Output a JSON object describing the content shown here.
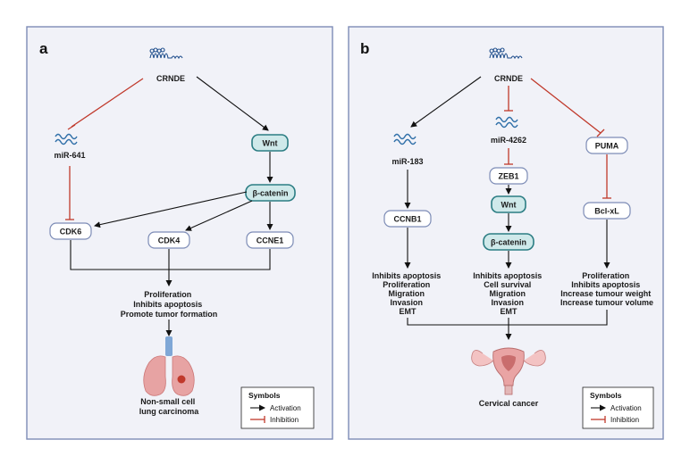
{
  "panel_a": {
    "letter": "a",
    "crnde": "CRNDE",
    "mir641": "miR-641",
    "wnt": "Wnt",
    "beta_catenin": "β-catenin",
    "cdk6": "CDK6",
    "cdk4": "CDK4",
    "ccne1": "CCNE1",
    "outcome": [
      "Proliferation",
      "Inhibits apoptosis",
      "Promote tumor formation"
    ],
    "disease": [
      "Non-small cell",
      "lung carcinoma"
    ],
    "legend": {
      "title": "Symbols",
      "activation": "Activation",
      "inhibition": "Inhibition"
    }
  },
  "panel_b": {
    "letter": "b",
    "crnde": "CRNDE",
    "mir183": "miR-183",
    "mir4262": "miR-4262",
    "puma": "PUMA",
    "zeb1": "ZEB1",
    "ccnb1": "CCNB1",
    "wnt": "Wnt",
    "bclxl": "Bcl-xL",
    "beta_catenin": "β-catenin",
    "outcome_left": [
      "Inhibits apoptosis",
      "Proliferation",
      "Migration",
      "Invasion",
      "EMT"
    ],
    "outcome_mid": [
      "Inhibits apoptosis",
      "Cell survival",
      "Migration",
      "Invasion",
      "EMT"
    ],
    "outcome_right": [
      "Proliferation",
      "Inhibits apoptosis",
      "Increase tumour weight",
      "Increase tumour volume"
    ],
    "disease": "Cervical cancer",
    "legend": {
      "title": "Symbols",
      "activation": "Activation",
      "inhibition": "Inhibition"
    }
  },
  "colors": {
    "activation": "#111111",
    "inhibition": "#c0392b",
    "panel_border": "#7d8cb6",
    "teal": "#2b7d83"
  }
}
